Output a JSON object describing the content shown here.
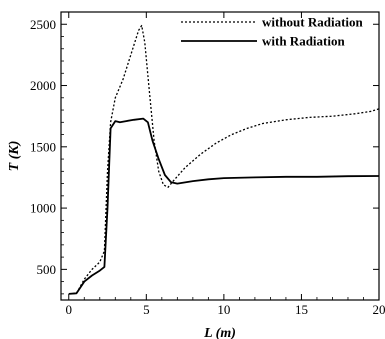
{
  "chart_data": {
    "type": "line",
    "title": "",
    "xlabel": "L (m)",
    "ylabel": "T (K)",
    "xlim": [
      -0.5,
      20
    ],
    "ylim": [
      250,
      2600
    ],
    "xticks": [
      0,
      5,
      10,
      15,
      20
    ],
    "yticks": [
      500,
      1000,
      1500,
      2000,
      2500
    ],
    "xtick_labels": [
      "0",
      "5",
      "10",
      "15",
      "20"
    ],
    "ytick_labels": [
      "500",
      "1000",
      "1500",
      "2000",
      "2500"
    ],
    "grid": false,
    "legend_position": "top-right",
    "series": [
      {
        "name": "without Radiation",
        "style": "dotted",
        "color": "#000000",
        "points": [
          [
            0,
            300
          ],
          [
            0.5,
            305
          ],
          [
            1,
            420
          ],
          [
            1.5,
            500
          ],
          [
            2,
            560
          ],
          [
            2.3,
            650
          ],
          [
            2.5,
            1300
          ],
          [
            2.7,
            1700
          ],
          [
            3,
            1900
          ],
          [
            3.5,
            2050
          ],
          [
            4,
            2250
          ],
          [
            4.5,
            2450
          ],
          [
            4.7,
            2490
          ],
          [
            4.9,
            2350
          ],
          [
            5.2,
            1950
          ],
          [
            5.5,
            1550
          ],
          [
            5.8,
            1300
          ],
          [
            6.1,
            1190
          ],
          [
            6.4,
            1170
          ],
          [
            6.8,
            1230
          ],
          [
            7.5,
            1330
          ],
          [
            8.5,
            1440
          ],
          [
            9.5,
            1530
          ],
          [
            10.5,
            1600
          ],
          [
            11.5,
            1650
          ],
          [
            12.5,
            1690
          ],
          [
            14,
            1720
          ],
          [
            15.5,
            1740
          ],
          [
            17,
            1750
          ],
          [
            18.5,
            1770
          ],
          [
            19.5,
            1790
          ],
          [
            20,
            1810
          ]
        ]
      },
      {
        "name": "with Radiation",
        "style": "solid",
        "color": "#000000",
        "points": [
          [
            0,
            300
          ],
          [
            0.5,
            305
          ],
          [
            1,
            400
          ],
          [
            1.5,
            450
          ],
          [
            2,
            490
          ],
          [
            2.3,
            520
          ],
          [
            2.5,
            1000
          ],
          [
            2.7,
            1650
          ],
          [
            3,
            1710
          ],
          [
            3.3,
            1700
          ],
          [
            3.7,
            1710
          ],
          [
            4.2,
            1720
          ],
          [
            4.8,
            1730
          ],
          [
            5.1,
            1700
          ],
          [
            5.4,
            1550
          ],
          [
            5.8,
            1400
          ],
          [
            6.2,
            1270
          ],
          [
            6.6,
            1210
          ],
          [
            7,
            1200
          ],
          [
            8,
            1220
          ],
          [
            9,
            1235
          ],
          [
            10,
            1245
          ],
          [
            12,
            1250
          ],
          [
            14,
            1255
          ],
          [
            16,
            1255
          ],
          [
            18,
            1260
          ],
          [
            20,
            1262
          ]
        ]
      }
    ]
  }
}
